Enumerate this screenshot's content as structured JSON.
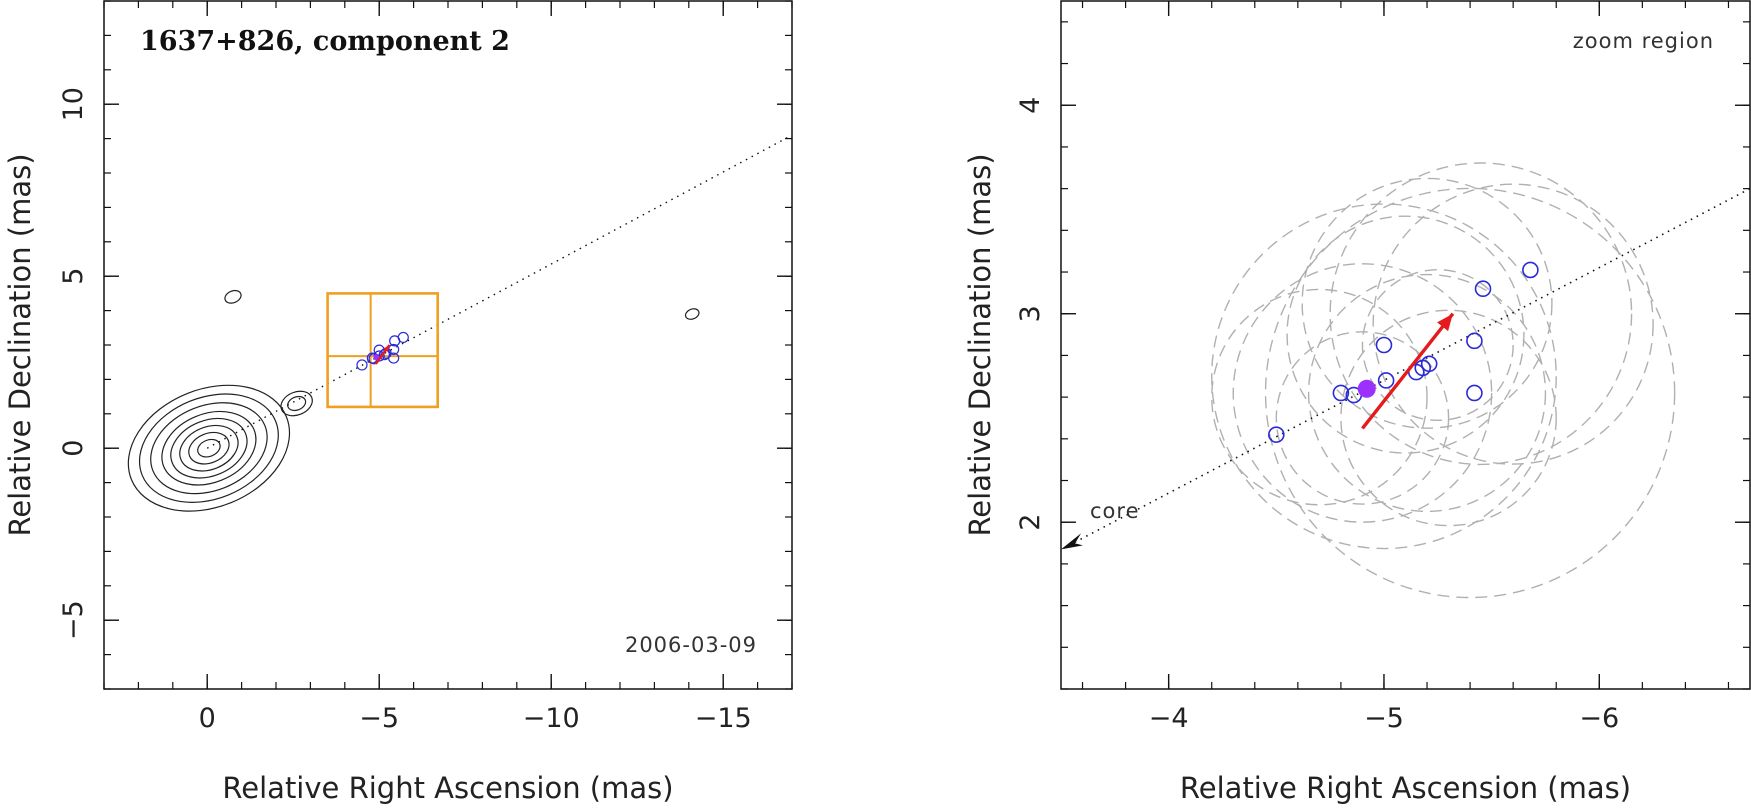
{
  "chart_data": [
    {
      "type": "scatter",
      "title": "1637+826, component 2",
      "annotation": "2006-03-09",
      "xlabel": "Relative Right Ascension (mas)",
      "ylabel": "Relative Declination (mas)",
      "xlim": [
        3,
        -17
      ],
      "ylim": [
        -7,
        13
      ],
      "x_ticks": [
        0,
        -5,
        -10,
        -15
      ],
      "y_ticks": [
        -5,
        0,
        5,
        10
      ],
      "tick_labels_x": [
        "0",
        "−5",
        "−10",
        "−15"
      ],
      "tick_labels_y": [
        "−5",
        "0",
        "5",
        "10"
      ],
      "jet_axis": {
        "from": [
          0,
          0
        ],
        "to": [
          -17,
          9.1
        ]
      },
      "zoom_box": {
        "x": [
          -3.5,
          -6.7
        ],
        "y": [
          1.2,
          4.5
        ]
      },
      "contours": [
        {
          "cx": -0.05,
          "cy": 0.0,
          "levels": [
            0.25,
            0.45,
            0.65,
            0.85,
            1.05,
            1.3,
            1.55,
            1.8
          ],
          "color": "#222222"
        },
        {
          "cx": -2.6,
          "cy": 1.3,
          "levels": [
            0.2,
            0.35
          ],
          "color": "#222222"
        },
        {
          "cx": -0.75,
          "cy": 4.4,
          "levels": [
            0.18
          ],
          "color": "#222222"
        },
        {
          "cx": -14.1,
          "cy": 3.9,
          "levels": [
            0.15
          ],
          "color": "#222222"
        }
      ],
      "points": [
        {
          "x": -4.5,
          "y": 2.42
        },
        {
          "x": -4.8,
          "y": 2.62
        },
        {
          "x": -4.85,
          "y": 2.6
        },
        {
          "x": -5.0,
          "y": 2.85
        },
        {
          "x": -5.0,
          "y": 2.68
        },
        {
          "x": -5.15,
          "y": 2.72
        },
        {
          "x": -5.2,
          "y": 2.76
        },
        {
          "x": -5.42,
          "y": 2.62
        },
        {
          "x": -5.42,
          "y": 2.87
        },
        {
          "x": -5.45,
          "y": 3.12
        },
        {
          "x": -5.7,
          "y": 3.22
        }
      ],
      "reference_point": {
        "x": -4.92,
        "y": 2.64
      },
      "motion_vector": {
        "from": [
          -4.9,
          2.45
        ],
        "to": [
          -5.3,
          3.0
        ]
      },
      "colors": {
        "points": "#2a2ad8",
        "vector": "#e41a1c",
        "box": "#f0a020",
        "reference": "#9b30ff"
      }
    },
    {
      "type": "scatter",
      "annotation": "zoom region",
      "core_label": "core",
      "xlabel": "Relative Right Ascension (mas)",
      "ylabel": "Relative Declination (mas)",
      "xlim": [
        -3.5,
        -6.7
      ],
      "ylim": [
        1.2,
        4.5
      ],
      "x_ticks": [
        -4,
        -5,
        -6
      ],
      "y_ticks": [
        2,
        3,
        4
      ],
      "tick_labels_x": [
        "−4",
        "−5",
        "−6"
      ],
      "tick_labels_y": [
        "2",
        "3",
        "4"
      ],
      "jet_axis": {
        "from": [
          -3.5,
          1.87
        ],
        "to": [
          -6.7,
          3.6
        ]
      },
      "points": [
        {
          "x": -4.5,
          "y": 2.42
        },
        {
          "x": -4.8,
          "y": 2.62
        },
        {
          "x": -4.86,
          "y": 2.61
        },
        {
          "x": -5.0,
          "y": 2.85
        },
        {
          "x": -5.01,
          "y": 2.68
        },
        {
          "x": -5.15,
          "y": 2.72
        },
        {
          "x": -5.18,
          "y": 2.74
        },
        {
          "x": -5.21,
          "y": 2.76
        },
        {
          "x": -5.42,
          "y": 2.62
        },
        {
          "x": -5.42,
          "y": 2.87
        },
        {
          "x": -5.46,
          "y": 3.12
        },
        {
          "x": -5.68,
          "y": 3.21
        }
      ],
      "uncertainty_circles": [
        {
          "x": -4.9,
          "y": 2.62,
          "r": 0.6
        },
        {
          "x": -5.0,
          "y": 2.7,
          "r": 0.8
        },
        {
          "x": -5.2,
          "y": 2.62,
          "r": 0.55
        },
        {
          "x": -5.4,
          "y": 2.62,
          "r": 0.95
        },
        {
          "x": -5.45,
          "y": 3.0,
          "r": 0.7
        },
        {
          "x": -5.1,
          "y": 2.9,
          "r": 0.55
        },
        {
          "x": -4.9,
          "y": 2.5,
          "r": 0.4
        },
        {
          "x": -5.25,
          "y": 2.85,
          "r": 0.35
        },
        {
          "x": -5.3,
          "y": 2.5,
          "r": 0.5
        },
        {
          "x": -5.2,
          "y": 3.05,
          "r": 0.58
        },
        {
          "x": -4.7,
          "y": 2.6,
          "r": 0.5
        },
        {
          "x": -5.6,
          "y": 2.95,
          "r": 0.65
        }
      ],
      "reference_point": {
        "x": -4.92,
        "y": 2.64
      },
      "motion_vector": {
        "from": [
          -4.9,
          2.45
        ],
        "to": [
          -5.32,
          3.0
        ]
      },
      "colors": {
        "points": "#2a2ad8",
        "vector": "#e41a1c",
        "circles": "#b0b0b0",
        "reference": "#9b30ff"
      }
    }
  ]
}
